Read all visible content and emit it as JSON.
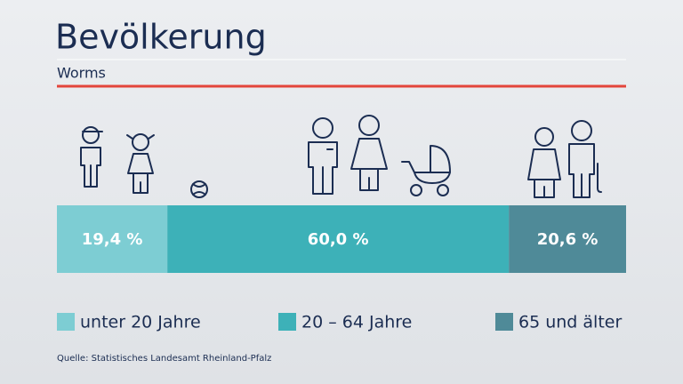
{
  "chart_data": {
    "type": "stacked-bar-horizontal",
    "title": "Bevölkerung",
    "subtitle": "Worms",
    "source": "Quelle: Statistisches Landesamt Rheinland-Pfalz",
    "xlim": [
      0,
      100
    ],
    "series": [
      {
        "name": "unter 20 Jahre",
        "color": "#7dcdd3",
        "values": [
          19.4
        ],
        "value_labels": [
          "19,4 %"
        ]
      },
      {
        "name": "20 – 64 Jahre",
        "color": "#3db1b8",
        "values": [
          60.0
        ],
        "value_labels": [
          "60,0 %"
        ]
      },
      {
        "name": "65 und älter",
        "color": "#4f8a98",
        "values": [
          20.6
        ],
        "value_labels": [
          "20,6 %"
        ]
      }
    ]
  }
}
